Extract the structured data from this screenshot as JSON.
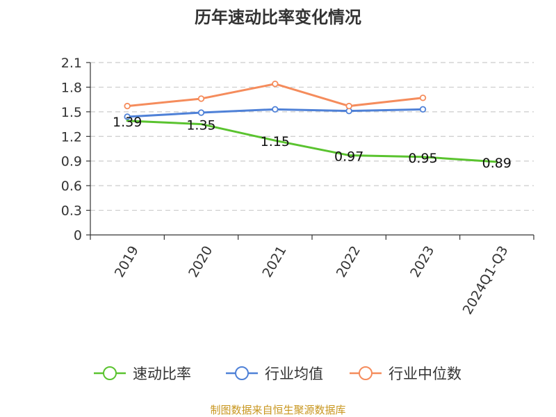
{
  "chart_data": {
    "type": "line",
    "title": "历年速动比率变化情况",
    "categories": [
      "2019",
      "2020",
      "2021",
      "2022",
      "2023",
      "2024Q1-Q3"
    ],
    "ylim": [
      0,
      2.1
    ],
    "yticks": [
      "0",
      "0.3",
      "0.6",
      "0.9",
      "1.2",
      "1.5",
      "1.8",
      "2.1"
    ],
    "grid": true,
    "legend_position": "bottom",
    "series": [
      {
        "name": "速动比率",
        "color": "#5ac32f",
        "values": [
          1.39,
          1.35,
          1.15,
          0.97,
          0.95,
          0.89
        ],
        "labels": [
          "1.39",
          "1.35",
          "1.15",
          "0.97",
          "0.95",
          "0.89"
        ]
      },
      {
        "name": "行业均值",
        "color": "#4f81d7",
        "values": [
          1.44,
          1.49,
          1.53,
          1.51,
          1.53,
          null
        ]
      },
      {
        "name": "行业中位数",
        "color": "#f58c5c",
        "values": [
          1.57,
          1.66,
          1.84,
          1.57,
          1.67,
          null
        ]
      }
    ]
  },
  "source": "制图数据来自恒生聚源数据库"
}
